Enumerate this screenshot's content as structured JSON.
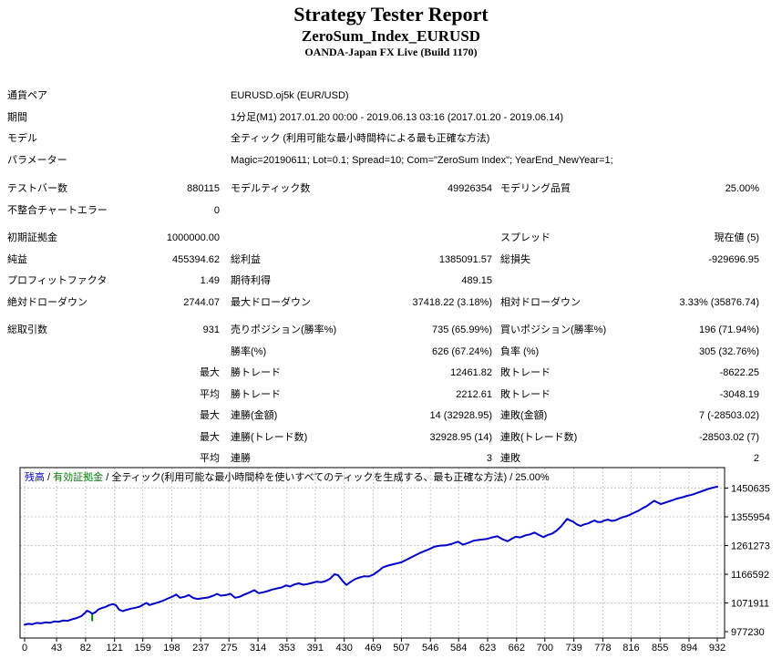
{
  "header": {
    "title": "Strategy Tester Report",
    "subtitle": "ZeroSum_Index_EURUSD",
    "broker": "OANDA-Japan FX Live (Build 1170)"
  },
  "report": {
    "section_tops": [
      94,
      196,
      250,
      351
    ],
    "rows": [
      {
        "section": 0,
        "span": true,
        "c1": "通貨ペア",
        "c2": "",
        "c3": "EURUSD.oj5k (EUR/USD)"
      },
      {
        "section": 0,
        "span": true,
        "c1": "期間",
        "c2": "",
        "c3": "1分足(M1) 2017.01.20 00:00 - 2019.06.13 03:16 (2017.01.20 - 2019.06.14)"
      },
      {
        "section": 0,
        "span": true,
        "c1": "モデル",
        "c2": "",
        "c3": "全ティック (利用可能な最小時間枠による最も正確な方法)"
      },
      {
        "section": 0,
        "span": true,
        "c1": "パラメーター",
        "c2": "",
        "c3": "Magic=20190611; Lot=0.1; Spread=10; Com=\"ZeroSum Index\"; YearEnd_NewYear=1;"
      },
      {
        "section": 1,
        "c1": "テストバー数",
        "c2": "880115",
        "c3": "モデルティック数",
        "c4": "49926354",
        "c5": "モデリング品質",
        "c6": "25.00%"
      },
      {
        "section": 1,
        "c1": "不整合チャートエラー",
        "c2": "0",
        "c3": "",
        "c4": "",
        "c5": "",
        "c6": ""
      },
      {
        "section": 2,
        "c1": "初期証拠金",
        "c2": "1000000.00",
        "c3": "",
        "c4": "",
        "c5": "スプレッド",
        "c6": "現在値 (5)"
      },
      {
        "section": 2,
        "c1": "純益",
        "c2": "455394.62",
        "c3": "総利益",
        "c4": "1385091.57",
        "c5": "総損失",
        "c6": "-929696.95"
      },
      {
        "section": 2,
        "c1": "プロフィットファクタ",
        "c2": "1.49",
        "c3": "期待利得",
        "c4": "489.15",
        "c5": "",
        "c6": ""
      },
      {
        "section": 2,
        "c1": "絶対ドローダウン",
        "c2": "2744.07",
        "c3": "最大ドローダウン",
        "c4": "37418.22 (3.18%)",
        "c5": "相対ドローダウン",
        "c6": "3.33% (35876.74)"
      },
      {
        "section": 3,
        "c1": "総取引数",
        "c2": "931",
        "c3": "売りポジション(勝率%)",
        "c4": "735 (65.99%)",
        "c5": "買いポジション(勝率%)",
        "c6": "196 (71.94%)"
      },
      {
        "section": 3,
        "c1": "",
        "c2": "",
        "c3": "勝率(%)",
        "c4": "626 (67.24%)",
        "c5": "負率 (%)",
        "c6": "305 (32.76%)"
      },
      {
        "section": 3,
        "c1": "",
        "c2": "最大",
        "c3": "勝トレード",
        "c4": "12461.82",
        "c5": "敗トレード",
        "c6": "-8622.25"
      },
      {
        "section": 3,
        "c1": "",
        "c2": "平均",
        "c3": "勝トレード",
        "c4": "2212.61",
        "c5": "敗トレード",
        "c6": "-3048.19"
      },
      {
        "section": 3,
        "c1": "",
        "c2": "最大",
        "c3": "連勝(金額)",
        "c4": "14 (32928.95)",
        "c5": "連敗(金額)",
        "c6": "7 (-28503.02)"
      },
      {
        "section": 3,
        "c1": "",
        "c2": "最大",
        "c3": "連勝(トレード数)",
        "c4": "32928.95 (14)",
        "c5": "連敗(トレード数)",
        "c6": "-28503.02 (7)"
      },
      {
        "section": 3,
        "c1": "",
        "c2": "平均",
        "c3": "連勝",
        "c4": "3",
        "c5": "連敗",
        "c6": "2"
      }
    ]
  },
  "chart_data": {
    "type": "line",
    "legend": {
      "balance_label": "残高",
      "separator": " / ",
      "equity_label": "有効証拠金",
      "rest": " / 全ティック(利用可能な最小時間枠を使いすべてのティックを生成する、最も正確な方法) / 25.00%"
    },
    "x_ticks": [
      0,
      43,
      82,
      121,
      159,
      198,
      237,
      275,
      314,
      353,
      391,
      430,
      469,
      507,
      546,
      584,
      623,
      662,
      700,
      739,
      778,
      816,
      855,
      894,
      932
    ],
    "y_ticks": [
      977230,
      1071911,
      1166592,
      1261273,
      1355954,
      1450635
    ],
    "x_range": [
      0,
      932
    ],
    "grid": true,
    "legend_position": "top-left",
    "colors": {
      "balance": "#0000C8",
      "equity": "#008000",
      "grid": "#C9C9C9",
      "axis": "#000000"
    },
    "series": [
      {
        "name": "残高",
        "color": "#0000C8",
        "points": [
          [
            0,
            1000000
          ],
          [
            5,
            1003000
          ],
          [
            10,
            1001500
          ],
          [
            16,
            1006000
          ],
          [
            22,
            1004500
          ],
          [
            28,
            1008000
          ],
          [
            34,
            1006500
          ],
          [
            40,
            1011000
          ],
          [
            46,
            1010000
          ],
          [
            52,
            1014000
          ],
          [
            58,
            1013000
          ],
          [
            64,
            1018000
          ],
          [
            70,
            1022000
          ],
          [
            76,
            1028000
          ],
          [
            80,
            1036000
          ],
          [
            84,
            1046000
          ],
          [
            88,
            1042000
          ],
          [
            91,
            1036000
          ],
          [
            95,
            1041000
          ],
          [
            99,
            1050000
          ],
          [
            104,
            1055000
          ],
          [
            109,
            1059000
          ],
          [
            114,
            1065000
          ],
          [
            119,
            1068000
          ],
          [
            123,
            1064000
          ],
          [
            127,
            1050000
          ],
          [
            132,
            1045000
          ],
          [
            137,
            1049000
          ],
          [
            143,
            1053000
          ],
          [
            149,
            1056000
          ],
          [
            155,
            1060000
          ],
          [
            160,
            1067000
          ],
          [
            164,
            1072000
          ],
          [
            168,
            1065000
          ],
          [
            173,
            1069000
          ],
          [
            179,
            1073000
          ],
          [
            186,
            1079000
          ],
          [
            193,
            1087000
          ],
          [
            199,
            1093000
          ],
          [
            204,
            1100000
          ],
          [
            209,
            1089000
          ],
          [
            215,
            1092000
          ],
          [
            221,
            1098000
          ],
          [
            227,
            1088000
          ],
          [
            233,
            1085000
          ],
          [
            240,
            1087500
          ],
          [
            247,
            1090000
          ],
          [
            254,
            1096000
          ],
          [
            259,
            1102000
          ],
          [
            264,
            1096000
          ],
          [
            271,
            1098000
          ],
          [
            277,
            1102000
          ],
          [
            283,
            1089000
          ],
          [
            289,
            1092000
          ],
          [
            296,
            1100000
          ],
          [
            302,
            1106000
          ],
          [
            309,
            1114000
          ],
          [
            315,
            1104000
          ],
          [
            321,
            1107000
          ],
          [
            327,
            1111000
          ],
          [
            333,
            1116000
          ],
          [
            340,
            1120000
          ],
          [
            346,
            1123000
          ],
          [
            352,
            1130000
          ],
          [
            357,
            1126000
          ],
          [
            363,
            1133000
          ],
          [
            369,
            1136500
          ],
          [
            375,
            1132000
          ],
          [
            381,
            1134500
          ],
          [
            387,
            1138000
          ],
          [
            393,
            1142000
          ],
          [
            399,
            1140000
          ],
          [
            405,
            1144000
          ],
          [
            411,
            1152000
          ],
          [
            417,
            1167000
          ],
          [
            422,
            1163000
          ],
          [
            428,
            1144000
          ],
          [
            433,
            1131000
          ],
          [
            439,
            1142000
          ],
          [
            445,
            1151000
          ],
          [
            451,
            1156000
          ],
          [
            457,
            1160000
          ],
          [
            463,
            1159000
          ],
          [
            469,
            1165000
          ],
          [
            476,
            1177000
          ],
          [
            482,
            1189000
          ],
          [
            489,
            1195000
          ],
          [
            497,
            1200000
          ],
          [
            507,
            1206000
          ],
          [
            515,
            1216000
          ],
          [
            524,
            1227000
          ],
          [
            534,
            1239000
          ],
          [
            545,
            1250000
          ],
          [
            551,
            1257000
          ],
          [
            559,
            1261000
          ],
          [
            567,
            1262000
          ],
          [
            574,
            1266000
          ],
          [
            583,
            1274000
          ],
          [
            590,
            1264000
          ],
          [
            597,
            1270000
          ],
          [
            604,
            1277000
          ],
          [
            612,
            1280000
          ],
          [
            622,
            1283000
          ],
          [
            629,
            1288000
          ],
          [
            636,
            1292000
          ],
          [
            643,
            1282000
          ],
          [
            650,
            1275500
          ],
          [
            656,
            1284000
          ],
          [
            661,
            1290000
          ],
          [
            667,
            1288000
          ],
          [
            674,
            1295000
          ],
          [
            680,
            1298000
          ],
          [
            686,
            1304000
          ],
          [
            692,
            1296000
          ],
          [
            698,
            1289000
          ],
          [
            704,
            1296000
          ],
          [
            710,
            1301000
          ],
          [
            716,
            1311000
          ],
          [
            722,
            1325000
          ],
          [
            727,
            1340000
          ],
          [
            730,
            1349000
          ],
          [
            734,
            1344000
          ],
          [
            738,
            1340000
          ],
          [
            743,
            1331000
          ],
          [
            748,
            1326000
          ],
          [
            753,
            1331000
          ],
          [
            758,
            1334000
          ],
          [
            763,
            1340000
          ],
          [
            767,
            1344000
          ],
          [
            771,
            1338500
          ],
          [
            776,
            1339000
          ],
          [
            780,
            1344000
          ],
          [
            785,
            1346500
          ],
          [
            790,
            1342500
          ],
          [
            795,
            1344500
          ],
          [
            800,
            1350000
          ],
          [
            805,
            1355000
          ],
          [
            810,
            1358000
          ],
          [
            815,
            1363500
          ],
          [
            820,
            1369500
          ],
          [
            826,
            1376000
          ],
          [
            831,
            1383500
          ],
          [
            837,
            1391000
          ],
          [
            842,
            1400000
          ],
          [
            847,
            1409000
          ],
          [
            851,
            1404000
          ],
          [
            856,
            1398000
          ],
          [
            861,
            1402000
          ],
          [
            866,
            1406000
          ],
          [
            871,
            1410000
          ],
          [
            876,
            1414500
          ],
          [
            881,
            1418000
          ],
          [
            886,
            1421000
          ],
          [
            891,
            1425000
          ],
          [
            896,
            1427500
          ],
          [
            901,
            1431000
          ],
          [
            906,
            1436000
          ],
          [
            911,
            1440000
          ],
          [
            916,
            1444500
          ],
          [
            920,
            1448000
          ],
          [
            924,
            1450500
          ],
          [
            928,
            1453000
          ],
          [
            932,
            1455395
          ]
        ]
      },
      {
        "name": "有効証拠金",
        "color": "#008000",
        "visible_spike": {
          "trade": 91,
          "high": 1036000,
          "low": 1012000
        }
      }
    ]
  }
}
